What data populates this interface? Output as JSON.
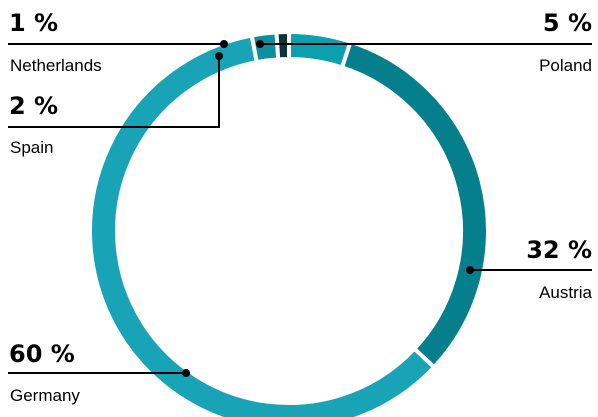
{
  "chart_data": {
    "type": "pie",
    "variant": "donut",
    "title": "",
    "unit": "%",
    "slices": [
      {
        "key": "poland",
        "label": "Poland",
        "value": 5,
        "display": "5 %",
        "color": "#0b9fb0"
      },
      {
        "key": "austria",
        "label": "Austria",
        "value": 32,
        "display": "32 %",
        "color": "#067f8c"
      },
      {
        "key": "germany",
        "label": "Germany",
        "value": 60,
        "display": "60 %",
        "color": "#19a3b6"
      },
      {
        "key": "spain",
        "label": "Spain",
        "value": 2,
        "display": "2 %",
        "color": "#0a8f9c"
      },
      {
        "key": "netherlands",
        "label": "Netherlands",
        "value": 1,
        "display": "1 %",
        "color": "#0b3438"
      }
    ],
    "start_angle_deg": 0,
    "direction": "clockwise",
    "legend": "none",
    "gap_color": "#ffffff"
  }
}
